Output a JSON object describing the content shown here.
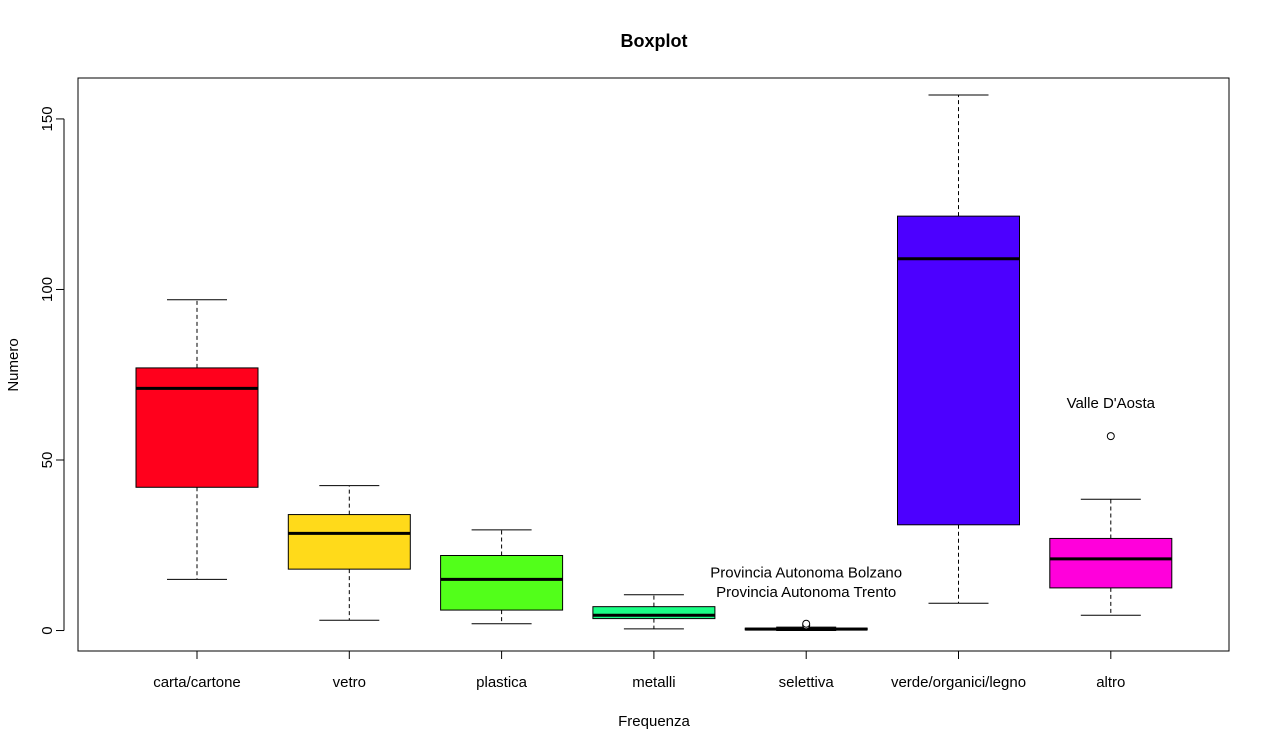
{
  "chart_data": {
    "type": "box",
    "title": "Boxplot",
    "xlabel": "Frequenza",
    "ylabel": "Numero",
    "ylim": [
      -6,
      162
    ],
    "yticks": [
      0,
      50,
      100,
      150
    ],
    "grid": false,
    "categories": [
      "carta/cartone",
      "vetro",
      "plastica",
      "metalli",
      "selettiva",
      "verde/organici/legno",
      "altro"
    ],
    "boxes": [
      {
        "name": "carta/cartone",
        "min": 15,
        "q1": 42,
        "median": 71,
        "q3": 77,
        "max": 97,
        "outliers": [],
        "color": "#FF001C"
      },
      {
        "name": "vetro",
        "min": 3,
        "q1": 18,
        "median": 28.5,
        "q3": 34,
        "max": 42.5,
        "outliers": [],
        "color": "#FFDA1A"
      },
      {
        "name": "plastica",
        "min": 2,
        "q1": 6,
        "median": 15,
        "q3": 22,
        "max": 29.5,
        "outliers": [],
        "color": "#52FF1A"
      },
      {
        "name": "metalli",
        "min": 0.5,
        "q1": 3.5,
        "median": 4.5,
        "q3": 7,
        "max": 10.5,
        "outliers": [],
        "color": "#1AFF86"
      },
      {
        "name": "selettiva",
        "min": 0,
        "q1": 0.2,
        "median": 0.4,
        "q3": 0.7,
        "max": 1,
        "outliers": [
          1.5,
          2
        ],
        "color": "#1A8CFF"
      },
      {
        "name": "verde/organici/legno",
        "min": 8,
        "q1": 31,
        "median": 109,
        "q3": 121.5,
        "max": 157,
        "outliers": [],
        "color": "#4C00FF"
      },
      {
        "name": "altro",
        "min": 4.5,
        "q1": 12.5,
        "median": 21,
        "q3": 27,
        "max": 38.5,
        "outliers": [
          57
        ],
        "color": "#FF00DB"
      }
    ],
    "annotations": [
      {
        "text": "Provincia Autonoma Bolzano",
        "category_index": 4,
        "y": 15.6
      },
      {
        "text": "Provincia Autonoma Trento",
        "category_index": 4,
        "y": 9.8
      },
      {
        "text": "Valle D'Aosta",
        "category_index": 6,
        "y": 65.2
      }
    ]
  }
}
